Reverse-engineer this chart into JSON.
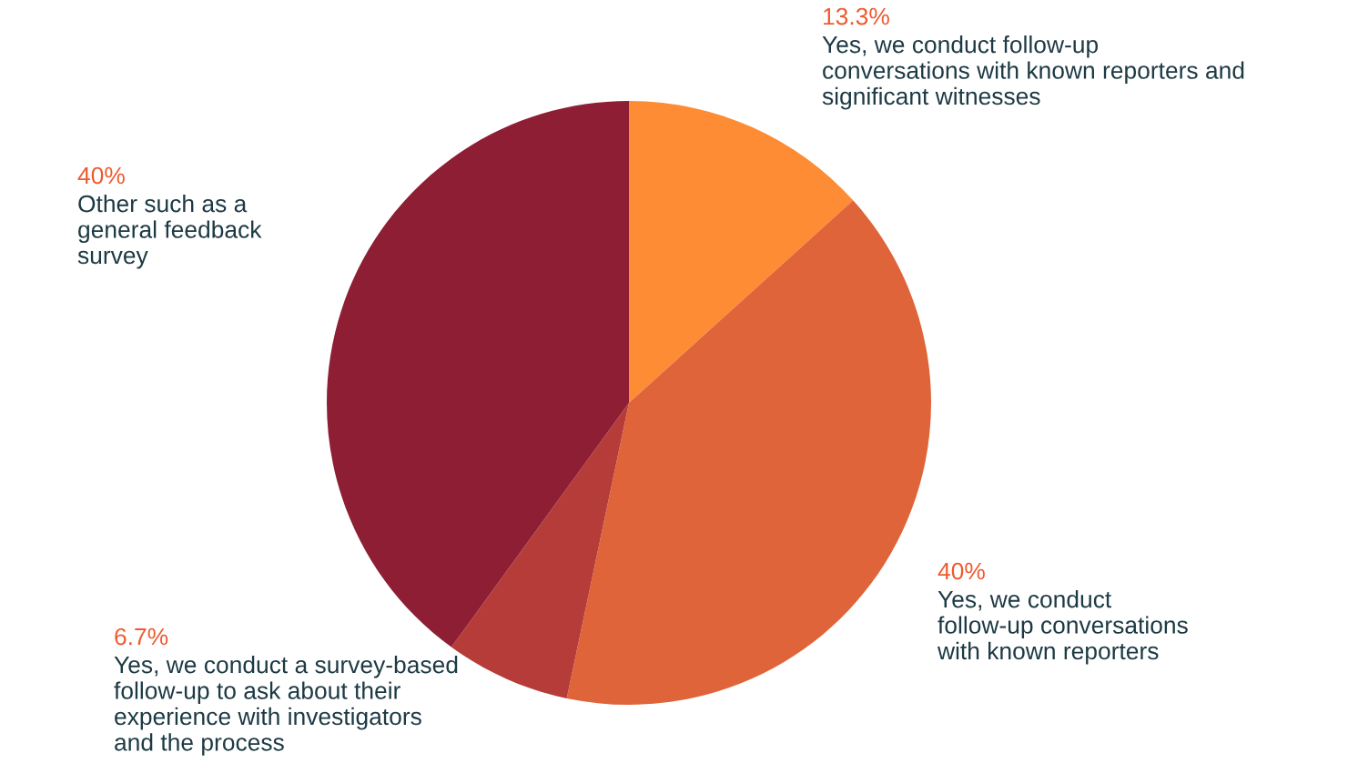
{
  "chart_data": {
    "type": "pie",
    "categories": [
      "Yes, we conduct follow-up conversations with known reporters and significant witnesses",
      "Yes, we conduct follow-up conversations with known reporters",
      "Yes, we conduct a survey-based follow-up to ask about their experience with investigators and the process",
      "Other such as a general feedback survey"
    ],
    "values": [
      13.3,
      40,
      6.7,
      40
    ],
    "value_labels": [
      "13.3%",
      "40%",
      "6.7%",
      "40%"
    ],
    "colors": [
      "#fd8c35",
      "#e0643a",
      "#b63c39",
      "#8e1e34"
    ]
  }
}
